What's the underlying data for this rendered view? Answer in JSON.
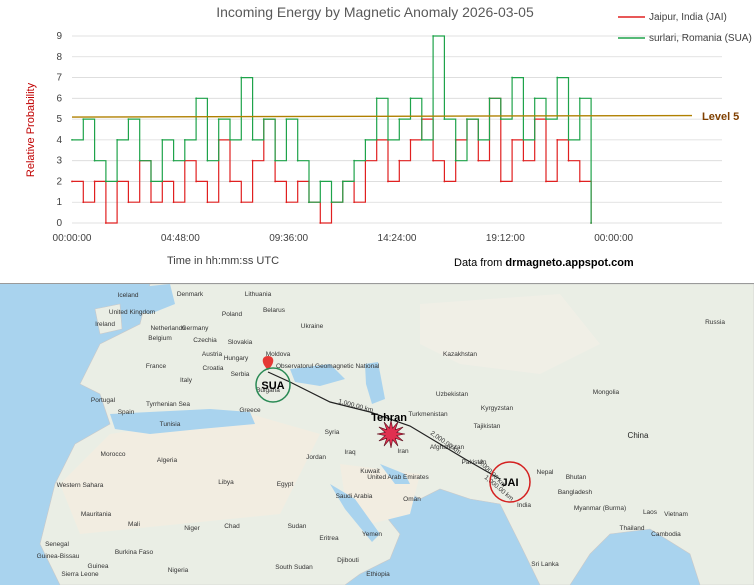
{
  "chart_data": {
    "type": "line",
    "title": "Incoming Energy by Magnetic Anomaly 2026-03-05",
    "ylabel": "Relative Probability",
    "xlabel": "Time in hh:mm:ss UTC",
    "source_prefix": "Data from ",
    "source_site": "drmagneto.appspot.com",
    "ylim": [
      0,
      9
    ],
    "yticks": [
      "0",
      "1",
      "2",
      "3",
      "4",
      "5",
      "6",
      "7",
      "8",
      "9"
    ],
    "xlim_hours": [
      0,
      28.8
    ],
    "xticks": [
      {
        "hours": 0,
        "label": "00:00:00"
      },
      {
        "hours": 4.8,
        "label": "04:48:00"
      },
      {
        "hours": 9.6,
        "label": "09:36:00"
      },
      {
        "hours": 14.4,
        "label": "14:24:00"
      },
      {
        "hours": 19.2,
        "label": "19:12:00"
      },
      {
        "hours": 24,
        "label": "00:00:00"
      }
    ],
    "threshold": {
      "value": 5.1,
      "label": "Level 5",
      "color": "#b08000"
    },
    "legend_position": "top-right",
    "series": [
      {
        "name": "Jaipur, India (JAI)",
        "color": "#e02020",
        "hours": [
          0,
          0.5,
          1,
          1.5,
          2,
          2.5,
          3,
          3.5,
          4,
          4.5,
          5,
          5.5,
          6,
          6.5,
          7,
          7.5,
          8,
          8.5,
          9,
          9.5,
          10,
          10.5,
          11,
          11.5,
          12,
          12.5,
          13,
          13.5,
          14,
          14.5,
          15,
          15.5,
          16,
          16.5,
          17,
          17.5,
          18,
          18.5,
          19,
          19.5,
          20,
          20.5,
          21,
          21.5,
          22,
          22.5,
          23
        ],
        "values": [
          2,
          1,
          2,
          0,
          2,
          1,
          3,
          1,
          2,
          1,
          3,
          2,
          1,
          4,
          2,
          1,
          3,
          5,
          2,
          1,
          2,
          1,
          0,
          1,
          2,
          1,
          3,
          4,
          2,
          3,
          4,
          5,
          3,
          2,
          4,
          5,
          3,
          6,
          2,
          4,
          3,
          5,
          2,
          4,
          3,
          2,
          0
        ]
      },
      {
        "name": "surlari, Romania (SUA)",
        "color": "#1ea34a",
        "hours": [
          0,
          0.5,
          1,
          1.5,
          2,
          2.5,
          3,
          3.5,
          4,
          4.5,
          5,
          5.5,
          6,
          6.5,
          7,
          7.5,
          8,
          8.5,
          9,
          9.5,
          10,
          10.5,
          11,
          11.5,
          12,
          12.5,
          13,
          13.5,
          14,
          14.5,
          15,
          15.5,
          16,
          16.5,
          17,
          17.5,
          18,
          18.5,
          19,
          19.5,
          20,
          20.5,
          21,
          21.5,
          22,
          22.5,
          23
        ],
        "values": [
          4,
          5,
          3,
          2,
          4,
          5,
          3,
          2,
          4,
          3,
          4,
          6,
          3,
          5,
          4,
          7,
          4,
          5,
          3,
          5,
          3,
          1,
          2,
          1,
          2,
          3,
          4,
          6,
          4,
          5,
          6,
          4,
          9,
          5,
          3,
          5,
          4,
          6,
          5,
          7,
          4,
          6,
          5,
          7,
          4,
          6,
          0
        ]
      }
    ]
  },
  "map": {
    "countries": [
      {
        "name": "Iceland",
        "size": "sm"
      },
      {
        "name": "Denmark",
        "size": "sm"
      },
      {
        "name": "Lithuania",
        "size": "sm"
      },
      {
        "name": "United Kingdom",
        "size": "sm"
      },
      {
        "name": "Poland",
        "size": "sm"
      },
      {
        "name": "Belarus",
        "size": "sm"
      },
      {
        "name": "Ireland",
        "size": "sm"
      },
      {
        "name": "Netherlands",
        "size": "sm"
      },
      {
        "name": "Germany",
        "size": "sm"
      },
      {
        "name": "Ukraine",
        "size": "sm"
      },
      {
        "name": "Belgium",
        "size": "sm"
      },
      {
        "name": "Czechia",
        "size": "sm"
      },
      {
        "name": "Slovakia",
        "size": "sm"
      },
      {
        "name": "Moldova",
        "size": "sm"
      },
      {
        "name": "Austria",
        "size": "sm"
      },
      {
        "name": "Hungary",
        "size": "sm"
      },
      {
        "name": "France",
        "size": "sm"
      },
      {
        "name": "Croatia",
        "size": "sm"
      },
      {
        "name": "Serbia",
        "size": "sm"
      },
      {
        "name": "Italy",
        "size": "sm"
      },
      {
        "name": "Bulgaria",
        "size": "sm"
      },
      {
        "name": "Portugal",
        "size": "sm"
      },
      {
        "name": "Spain",
        "size": "sm"
      },
      {
        "name": "Tyrrhenian Sea",
        "size": "sm"
      },
      {
        "name": "Greece",
        "size": "sm"
      },
      {
        "name": "Tunisia",
        "size": "sm"
      },
      {
        "name": "Morocco",
        "size": "sm"
      },
      {
        "name": "Algeria",
        "size": "sm"
      },
      {
        "name": "Libya",
        "size": "sm"
      },
      {
        "name": "Egypt",
        "size": "sm"
      },
      {
        "name": "Western Sahara",
        "size": "sm"
      },
      {
        "name": "Mauritania",
        "size": "sm"
      },
      {
        "name": "Mali",
        "size": "sm"
      },
      {
        "name": "Niger",
        "size": "sm"
      },
      {
        "name": "Chad",
        "size": "sm"
      },
      {
        "name": "Sudan",
        "size": "sm"
      },
      {
        "name": "Senegal",
        "size": "sm"
      },
      {
        "name": "Guinea-Bissau",
        "size": "sm"
      },
      {
        "name": "Burkina Faso",
        "size": "sm"
      },
      {
        "name": "Guinea",
        "size": "sm"
      },
      {
        "name": "Nigeria",
        "size": "sm"
      },
      {
        "name": "Sierra Leone",
        "size": "sm"
      },
      {
        "name": "Eritrea",
        "size": "sm"
      },
      {
        "name": "Yemen",
        "size": "sm"
      },
      {
        "name": "Djibouti",
        "size": "sm"
      },
      {
        "name": "Ethiopia",
        "size": "sm"
      },
      {
        "name": "South Sudan",
        "size": "sm"
      },
      {
        "name": "Syria",
        "size": "sm"
      },
      {
        "name": "Jordan",
        "size": "sm"
      },
      {
        "name": "Iraq",
        "size": "sm"
      },
      {
        "name": "Kuwait",
        "size": "sm"
      },
      {
        "name": "Saudi Arabia",
        "size": "sm"
      },
      {
        "name": "United Arab Emirates",
        "size": "sm"
      },
      {
        "name": "Oman",
        "size": "sm"
      },
      {
        "name": "Iran",
        "size": "sm"
      },
      {
        "name": "Pakistan",
        "size": "sm"
      },
      {
        "name": "India",
        "size": "sm"
      },
      {
        "name": "Nepal",
        "size": "sm"
      },
      {
        "name": "Bhutan",
        "size": "sm"
      },
      {
        "name": "Bangladesh",
        "size": "sm"
      },
      {
        "name": "Myanmar (Burma)",
        "size": "sm"
      },
      {
        "name": "Thailand",
        "size": "sm"
      },
      {
        "name": "Laos",
        "size": "sm"
      },
      {
        "name": "Vietnam",
        "size": "sm"
      },
      {
        "name": "Cambodia",
        "size": "sm"
      },
      {
        "name": "Sri Lanka",
        "size": "sm"
      },
      {
        "name": "Kazakhstan",
        "size": "sm"
      },
      {
        "name": "Uzbekistan",
        "size": "sm"
      },
      {
        "name": "Turkmenistan",
        "size": "sm"
      },
      {
        "name": "Kyrgyzstan",
        "size": "sm"
      },
      {
        "name": "Tajikistan",
        "size": "sm"
      },
      {
        "name": "Afghanistan",
        "size": "sm"
      },
      {
        "name": "Mongolia",
        "size": "sm"
      },
      {
        "name": "China",
        "size": "lg"
      },
      {
        "name": "Russia",
        "size": "sm"
      }
    ],
    "sua_marker": "SUA",
    "jai_marker": "JAI",
    "event_label": "Tehran",
    "station_callout": "Observatorul Geomagnetic National",
    "distance_labels": [
      "1,000.00 km",
      "2,000.00 km",
      "3,000.00 km",
      "1,000.00 km"
    ],
    "colors": {
      "water": "#a9d3ee",
      "land": "#eaeee5",
      "desert": "#f2ede1",
      "sua_ring": "#2a8a55",
      "jai_ring": "#d42020",
      "burst": "#e03050"
    }
  }
}
